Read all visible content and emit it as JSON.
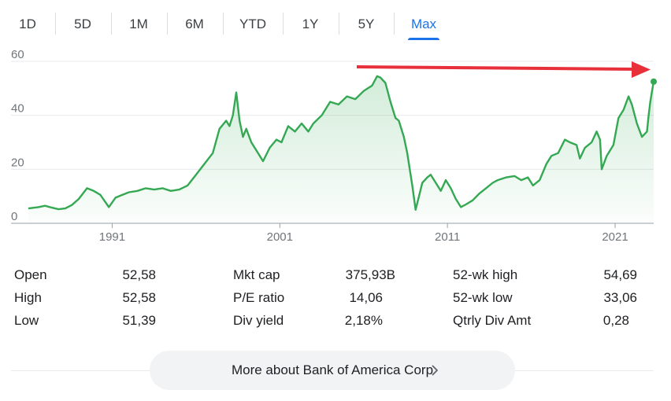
{
  "tabs": [
    {
      "label": "1D",
      "active": false
    },
    {
      "label": "5D",
      "active": false
    },
    {
      "label": "1M",
      "active": false
    },
    {
      "label": "6M",
      "active": false
    },
    {
      "label": "YTD",
      "active": false
    },
    {
      "label": "1Y",
      "active": false
    },
    {
      "label": "5Y",
      "active": false
    },
    {
      "label": "Max",
      "active": true
    }
  ],
  "colors": {
    "line": "#34a853",
    "fill": "#34a853",
    "annotation_arrow": "#e8303a",
    "active_tab": "#1a73e8",
    "grid": "#e8eaed"
  },
  "chart_data": {
    "type": "area",
    "title": "",
    "xlabel": "",
    "ylabel": "",
    "ylim": [
      0,
      60
    ],
    "xlim": [
      1986.0,
      2023.3
    ],
    "y_ticks": [
      "0",
      "20",
      "40",
      "60"
    ],
    "x_ticks": [
      "1991",
      "2001",
      "2011",
      "2021"
    ],
    "grid": "horizontal",
    "annotation": "red arrow pointing right from the 2007 peak level toward the latest value",
    "series": [
      {
        "name": "",
        "x": [
          1986.0,
          1986.6,
          1987.0,
          1987.4,
          1987.8,
          1988.2,
          1988.6,
          1989.0,
          1989.5,
          1989.9,
          1990.3,
          1990.8,
          1991.2,
          1991.6,
          1992.0,
          1992.5,
          1993.0,
          1993.5,
          1994.0,
          1994.5,
          1995.0,
          1995.5,
          1996.0,
          1996.5,
          1997.0,
          1997.4,
          1997.8,
          1998.0,
          1998.2,
          1998.4,
          1998.6,
          1998.8,
          1999.0,
          1999.3,
          1999.6,
          2000.0,
          2000.4,
          2000.8,
          2001.1,
          2001.5,
          2001.9,
          2002.3,
          2002.7,
          2003.0,
          2003.5,
          2004.0,
          2004.5,
          2005.0,
          2005.5,
          2006.0,
          2006.5,
          2006.8,
          2007.0,
          2007.3,
          2007.6,
          2007.9,
          2008.1,
          2008.4,
          2008.6,
          2008.9,
          2009.1,
          2009.3,
          2009.5,
          2009.8,
          2010.0,
          2010.3,
          2010.6,
          2010.9,
          2011.2,
          2011.5,
          2011.8,
          2012.1,
          2012.5,
          2012.9,
          2013.3,
          2013.7,
          2014.0,
          2014.5,
          2015.0,
          2015.4,
          2015.8,
          2016.1,
          2016.5,
          2016.9,
          2017.2,
          2017.6,
          2018.0,
          2018.3,
          2018.7,
          2018.9,
          2019.2,
          2019.6,
          2019.9,
          2020.1,
          2020.2,
          2020.5,
          2020.9,
          2021.2,
          2021.5,
          2021.8,
          2022.0,
          2022.3,
          2022.6,
          2022.9,
          2023.0,
          2023.1,
          2023.2,
          2023.3
        ],
        "y": [
          5.5,
          6.0,
          6.5,
          5.8,
          5.2,
          5.5,
          6.8,
          9.0,
          13.0,
          12.0,
          10.5,
          6.0,
          9.5,
          10.5,
          11.5,
          12.0,
          13.0,
          12.5,
          13.0,
          12.0,
          12.5,
          14.0,
          18.0,
          22.0,
          26.0,
          35.0,
          38.0,
          36.0,
          40.0,
          48.5,
          38.0,
          32.0,
          35.0,
          30.0,
          27.0,
          23.0,
          28.0,
          31.0,
          30.0,
          36.0,
          34.0,
          37.0,
          34.0,
          37.0,
          40.0,
          45.0,
          44.0,
          47.0,
          46.0,
          49.0,
          51.0,
          54.5,
          54.0,
          52.0,
          45.0,
          39.0,
          38.0,
          32.0,
          26.0,
          14.0,
          5.0,
          10.0,
          15.0,
          17.0,
          18.0,
          15.0,
          12.0,
          16.0,
          13.0,
          9.0,
          6.0,
          7.0,
          8.5,
          11.0,
          13.0,
          15.0,
          16.0,
          17.0,
          17.5,
          16.0,
          17.0,
          14.0,
          16.0,
          22.0,
          25.0,
          26.0,
          31.0,
          30.0,
          29.0,
          24.0,
          28.0,
          30.0,
          34.0,
          31.0,
          20.0,
          25.0,
          29.0,
          39.0,
          42.0,
          47.0,
          44.0,
          37.0,
          32.0,
          34.0,
          40.0,
          45.0,
          49.0,
          52.5
        ]
      }
    ]
  },
  "stats": [
    {
      "label": "Open",
      "value": "52,58"
    },
    {
      "label": "High",
      "value": "52,58"
    },
    {
      "label": "Low",
      "value": "51,39"
    },
    {
      "label": "Mkt cap",
      "value": "375,93B"
    },
    {
      "label": "P/E ratio",
      "value": "14,06"
    },
    {
      "label": "Div yield",
      "value": "2,18%"
    },
    {
      "label": "52-wk high",
      "value": "54,69"
    },
    {
      "label": "52-wk low",
      "value": "33,06"
    },
    {
      "label": "Qtrly Div Amt",
      "value": "0,28"
    }
  ],
  "more_button": {
    "label": "More about Bank of America Corp"
  }
}
